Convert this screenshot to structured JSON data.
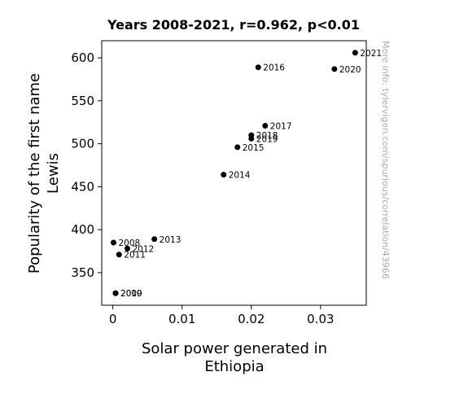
{
  "chart_data": {
    "type": "scatter",
    "title": "Years 2008-2021, r=0.962, p<0.01",
    "xlabel": [
      "Solar power generated in",
      "Ethiopia"
    ],
    "ylabel": [
      "Popularity of the first name",
      "Lewis"
    ],
    "side_note": "More info: tylervigen.com/spurious/correlation/43966",
    "xlim": [
      -0.0016,
      0.0366
    ],
    "ylim": [
      312,
      620
    ],
    "xticks": [
      {
        "value": 0,
        "label": "0"
      },
      {
        "value": 0.01,
        "label": "0.01"
      },
      {
        "value": 0.02,
        "label": "0.02"
      },
      {
        "value": 0.03,
        "label": "0.03"
      }
    ],
    "yticks": [
      {
        "value": 350,
        "label": "350"
      },
      {
        "value": 400,
        "label": "400"
      },
      {
        "value": 450,
        "label": "450"
      },
      {
        "value": 500,
        "label": "500"
      },
      {
        "value": 550,
        "label": "550"
      },
      {
        "value": 600,
        "label": "600"
      }
    ],
    "marker_color": "#000000",
    "points": [
      {
        "label": "2008",
        "x": 0.0001,
        "y": 385
      },
      {
        "label": "2009",
        "x": 0.0004,
        "y": 326
      },
      {
        "label": "2010",
        "x": 0.0004,
        "y": 326
      },
      {
        "label": "2011",
        "x": 0.0009,
        "y": 371
      },
      {
        "label": "2012",
        "x": 0.0021,
        "y": 378
      },
      {
        "label": "2013",
        "x": 0.006,
        "y": 389
      },
      {
        "label": "2014",
        "x": 0.016,
        "y": 464
      },
      {
        "label": "2015",
        "x": 0.018,
        "y": 496
      },
      {
        "label": "2016",
        "x": 0.021,
        "y": 589
      },
      {
        "label": "2017",
        "x": 0.022,
        "y": 521
      },
      {
        "label": "2018",
        "x": 0.02,
        "y": 510
      },
      {
        "label": "2019",
        "x": 0.02,
        "y": 506
      },
      {
        "label": "2020",
        "x": 0.032,
        "y": 587
      },
      {
        "label": "2021",
        "x": 0.035,
        "y": 606
      }
    ]
  }
}
